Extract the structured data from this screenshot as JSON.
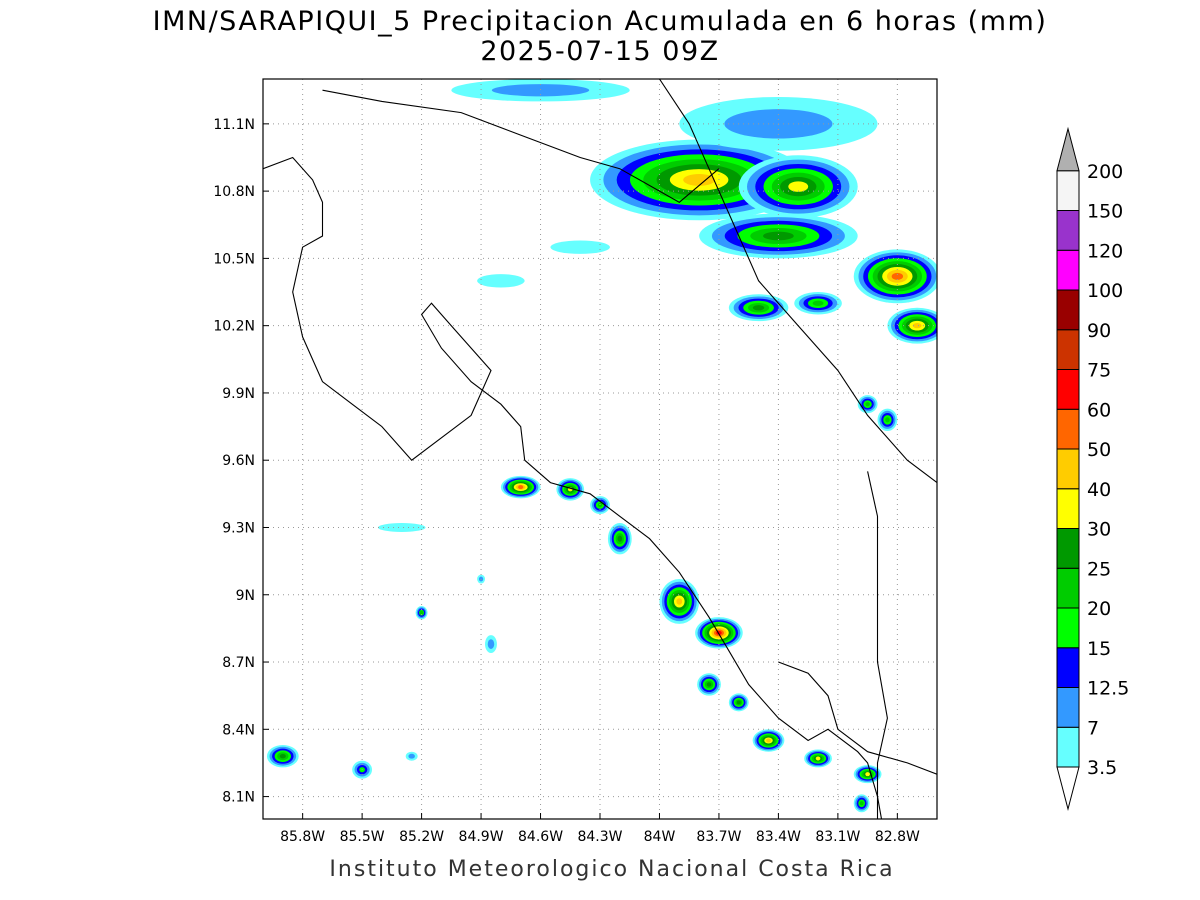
{
  "header": {
    "title": "IMN/SARAPIQUI_5 Precipitacion Acumulada en 6 horas (mm)",
    "subtitle": "2025-07-15 09Z"
  },
  "footer": {
    "credit": "Instituto Meteorologico Nacional Costa Rica"
  },
  "map": {
    "lon_range": [
      -86.0,
      -82.6
    ],
    "lat_range": [
      8.0,
      11.3
    ],
    "lon_ticks": [
      {
        "value": -85.8,
        "label": "85.8W"
      },
      {
        "value": -85.5,
        "label": "85.5W"
      },
      {
        "value": -85.2,
        "label": "85.2W"
      },
      {
        "value": -84.9,
        "label": "84.9W"
      },
      {
        "value": -84.6,
        "label": "84.6W"
      },
      {
        "value": -84.3,
        "label": "84.3W"
      },
      {
        "value": -84.0,
        "label": "84W"
      },
      {
        "value": -83.7,
        "label": "83.7W"
      },
      {
        "value": -83.4,
        "label": "83.4W"
      },
      {
        "value": -83.1,
        "label": "83.1W"
      },
      {
        "value": -82.8,
        "label": "82.8W"
      }
    ],
    "lat_ticks": [
      {
        "value": 8.1,
        "label": "8.1N"
      },
      {
        "value": 8.4,
        "label": "8.4N"
      },
      {
        "value": 8.7,
        "label": "8.7N"
      },
      {
        "value": 9.0,
        "label": "9N"
      },
      {
        "value": 9.3,
        "label": "9.3N"
      },
      {
        "value": 9.6,
        "label": "9.6N"
      },
      {
        "value": 9.9,
        "label": "9.9N"
      },
      {
        "value": 10.2,
        "label": "10.2N"
      },
      {
        "value": 10.5,
        "label": "10.5N"
      },
      {
        "value": 10.8,
        "label": "10.8N"
      },
      {
        "value": 11.1,
        "label": "11.1N"
      }
    ],
    "grid": true,
    "coastline": [
      [
        -86,
        10.9
      ],
      [
        -85.85,
        10.95
      ],
      [
        -85.75,
        10.85
      ],
      [
        -85.7,
        10.75
      ],
      [
        -85.7,
        10.6
      ],
      [
        -85.8,
        10.55
      ],
      [
        -85.85,
        10.35
      ],
      [
        -85.8,
        10.15
      ],
      [
        -85.7,
        9.95
      ],
      [
        -85.55,
        9.85
      ],
      [
        -85.4,
        9.75
      ],
      [
        -85.25,
        9.6
      ],
      [
        -85.1,
        9.7
      ],
      [
        -84.95,
        9.8
      ],
      [
        -84.9,
        9.9
      ],
      [
        -84.85,
        10.0
      ],
      [
        -85.05,
        10.2
      ],
      [
        -85.15,
        10.3
      ],
      [
        -85.2,
        10.25
      ],
      [
        -85.1,
        10.1
      ],
      [
        -84.95,
        9.95
      ],
      [
        -84.8,
        9.85
      ],
      [
        -84.7,
        9.75
      ],
      [
        -84.68,
        9.6
      ],
      [
        -84.55,
        9.5
      ],
      [
        -84.35,
        9.45
      ],
      [
        -84.2,
        9.35
      ],
      [
        -84.05,
        9.25
      ],
      [
        -83.9,
        9.1
      ],
      [
        -83.75,
        8.9
      ],
      [
        -83.65,
        8.75
      ],
      [
        -83.55,
        8.6
      ],
      [
        -83.4,
        8.45
      ],
      [
        -83.25,
        8.35
      ],
      [
        -83.15,
        8.4
      ],
      [
        -83.0,
        8.3
      ],
      [
        -82.95,
        8.25
      ],
      [
        -82.9,
        8.1
      ],
      [
        -82.88,
        8.0
      ]
    ],
    "caribbean_coast": [
      [
        -84.0,
        11.3
      ],
      [
        -83.85,
        11.1
      ],
      [
        -83.75,
        10.9
      ],
      [
        -83.65,
        10.7
      ],
      [
        -83.5,
        10.4
      ],
      [
        -83.3,
        10.2
      ],
      [
        -83.1,
        10.0
      ],
      [
        -82.95,
        9.8
      ],
      [
        -82.75,
        9.6
      ],
      [
        -82.6,
        9.5
      ]
    ],
    "nicaragua_border": [
      [
        -85.7,
        11.25
      ],
      [
        -85.4,
        11.2
      ],
      [
        -85.0,
        11.15
      ],
      [
        -84.7,
        11.05
      ],
      [
        -84.4,
        10.95
      ],
      [
        -84.2,
        10.9
      ],
      [
        -83.9,
        10.75
      ],
      [
        -83.7,
        10.9
      ]
    ],
    "panama_border": [
      [
        -82.95,
        9.55
      ],
      [
        -82.9,
        9.35
      ],
      [
        -82.9,
        9.0
      ],
      [
        -82.9,
        8.7
      ],
      [
        -82.85,
        8.45
      ],
      [
        -82.9,
        8.25
      ],
      [
        -82.9,
        8.0
      ]
    ],
    "panama_coast": [
      [
        -83.4,
        8.7
      ],
      [
        -83.25,
        8.65
      ],
      [
        -83.15,
        8.55
      ],
      [
        -83.1,
        8.4
      ],
      [
        -82.95,
        8.3
      ],
      [
        -82.75,
        8.25
      ],
      [
        -82.6,
        8.2
      ]
    ]
  },
  "colorbar": {
    "levels": [
      {
        "label": "3.5",
        "color": "#66ffff"
      },
      {
        "label": "7",
        "color": "#3399ff"
      },
      {
        "label": "12.5",
        "color": "#0000ff"
      },
      {
        "label": "15",
        "color": "#00ff00"
      },
      {
        "label": "20",
        "color": "#00cc00"
      },
      {
        "label": "25",
        "color": "#009900"
      },
      {
        "label": "30",
        "color": "#ffff00"
      },
      {
        "label": "40",
        "color": "#ffcc00"
      },
      {
        "label": "50",
        "color": "#ff6600"
      },
      {
        "label": "60",
        "color": "#ff0000"
      },
      {
        "label": "75",
        "color": "#cc3300"
      },
      {
        "label": "90",
        "color": "#990000"
      },
      {
        "label": "100",
        "color": "#ff00ff"
      },
      {
        "label": "120",
        "color": "#9933cc"
      },
      {
        "label": "150",
        "color": "#f5f5f5"
      },
      {
        "label": "200",
        "color": "#b0b0b0"
      }
    ]
  },
  "precip_cells": [
    {
      "lon": -83.8,
      "lat": 10.85,
      "rx": 0.55,
      "ry": 0.18,
      "level": 7
    },
    {
      "lon": -83.3,
      "lat": 10.82,
      "rx": 0.3,
      "ry": 0.14,
      "level": 6
    },
    {
      "lon": -83.4,
      "lat": 10.6,
      "rx": 0.4,
      "ry": 0.1,
      "level": 5
    },
    {
      "lon": -82.8,
      "lat": 10.42,
      "rx": 0.22,
      "ry": 0.12,
      "level": 8
    },
    {
      "lon": -82.7,
      "lat": 10.2,
      "rx": 0.15,
      "ry": 0.08,
      "level": 7
    },
    {
      "lon": -83.5,
      "lat": 10.28,
      "rx": 0.15,
      "ry": 0.06,
      "level": 5
    },
    {
      "lon": -83.2,
      "lat": 10.3,
      "rx": 0.12,
      "ry": 0.05,
      "level": 4
    },
    {
      "lon": -84.7,
      "lat": 9.48,
      "rx": 0.1,
      "ry": 0.05,
      "level": 8
    },
    {
      "lon": -84.45,
      "lat": 9.47,
      "rx": 0.07,
      "ry": 0.05,
      "level": 6
    },
    {
      "lon": -84.3,
      "lat": 9.4,
      "rx": 0.05,
      "ry": 0.04,
      "level": 4
    },
    {
      "lon": -84.2,
      "lat": 9.25,
      "rx": 0.06,
      "ry": 0.07,
      "level": 5
    },
    {
      "lon": -83.9,
      "lat": 8.97,
      "rx": 0.1,
      "ry": 0.1,
      "level": 7
    },
    {
      "lon": -83.7,
      "lat": 8.83,
      "rx": 0.12,
      "ry": 0.07,
      "level": 9
    },
    {
      "lon": -83.75,
      "lat": 8.6,
      "rx": 0.06,
      "ry": 0.05,
      "level": 5
    },
    {
      "lon": -83.6,
      "lat": 8.52,
      "rx": 0.05,
      "ry": 0.04,
      "level": 5
    },
    {
      "lon": -83.45,
      "lat": 8.35,
      "rx": 0.08,
      "ry": 0.05,
      "level": 7
    },
    {
      "lon": -83.2,
      "lat": 8.27,
      "rx": 0.07,
      "ry": 0.04,
      "level": 6
    },
    {
      "lon": -82.95,
      "lat": 8.2,
      "rx": 0.07,
      "ry": 0.04,
      "level": 6
    },
    {
      "lon": -82.98,
      "lat": 8.07,
      "rx": 0.04,
      "ry": 0.04,
      "level": 4
    },
    {
      "lon": -85.9,
      "lat": 8.28,
      "rx": 0.08,
      "ry": 0.05,
      "level": 5
    },
    {
      "lon": -85.5,
      "lat": 8.22,
      "rx": 0.05,
      "ry": 0.04,
      "level": 3
    },
    {
      "lon": -85.2,
      "lat": 8.92,
      "rx": 0.03,
      "ry": 0.03,
      "level": 4
    },
    {
      "lon": -82.95,
      "lat": 9.85,
      "rx": 0.05,
      "ry": 0.04,
      "level": 4
    },
    {
      "lon": -82.85,
      "lat": 9.78,
      "rx": 0.05,
      "ry": 0.05,
      "level": 4
    },
    {
      "lon": -83.4,
      "lat": 11.1,
      "rx": 0.5,
      "ry": 0.12,
      "level": 1
    },
    {
      "lon": -84.6,
      "lat": 11.25,
      "rx": 0.45,
      "ry": 0.05,
      "level": 1
    },
    {
      "lon": -84.4,
      "lat": 10.55,
      "rx": 0.15,
      "ry": 0.03,
      "level": 0
    },
    {
      "lon": -84.8,
      "lat": 10.4,
      "rx": 0.12,
      "ry": 0.03,
      "level": 0
    },
    {
      "lon": -85.3,
      "lat": 9.3,
      "rx": 0.12,
      "ry": 0.02,
      "level": 0
    },
    {
      "lon": -84.9,
      "lat": 9.07,
      "rx": 0.02,
      "ry": 0.02,
      "level": 1
    },
    {
      "lon": -84.85,
      "lat": 8.78,
      "rx": 0.03,
      "ry": 0.04,
      "level": 1
    },
    {
      "lon": -85.25,
      "lat": 8.28,
      "rx": 0.03,
      "ry": 0.02,
      "level": 1
    }
  ]
}
